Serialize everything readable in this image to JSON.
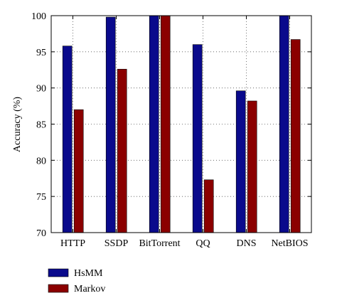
{
  "chart_data": {
    "type": "bar",
    "categories": [
      "HTTP",
      "SSDP",
      "BitTorrent",
      "QQ",
      "DNS",
      "NetBIOS"
    ],
    "series": [
      {
        "name": "HsMM",
        "values": [
          95.8,
          99.8,
          100,
          96.0,
          89.6,
          100
        ],
        "color": "#0a0a8c"
      },
      {
        "name": "Markov",
        "values": [
          87.0,
          92.6,
          100,
          77.3,
          88.2,
          96.7
        ],
        "color": "#8b0000"
      }
    ],
    "ylabel": "Accuracy (%)",
    "xlabel": "",
    "ylim": [
      70,
      100
    ],
    "yticks": [
      70,
      75,
      80,
      85,
      90,
      95,
      100
    ],
    "grid": true,
    "legend_position": "bottom-left"
  }
}
